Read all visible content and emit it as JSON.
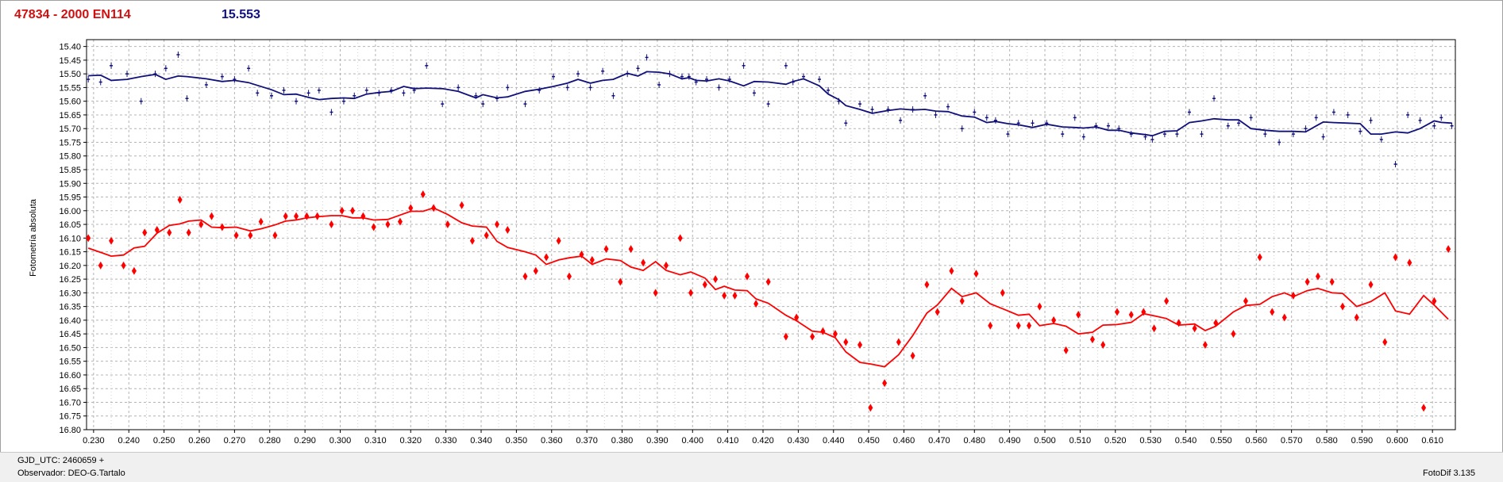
{
  "header": {
    "title": "47834 - 2000 EN114",
    "value": "15.553"
  },
  "footer": {
    "gjd": "GJD_UTC: 2460659 +",
    "observer": "Observador: DEO-G.Tartalo",
    "software": "FotoDif 3.135"
  },
  "chart_data": {
    "type": "scatter",
    "title": "",
    "xlabel": "",
    "ylabel": "Fotometría absoluta",
    "xlim": [
      0.228,
      0.6165
    ],
    "ylim": [
      16.8,
      15.375
    ],
    "y_inverted": true,
    "grid": true,
    "x_ticks": [
      "0.230",
      "0.240",
      "0.250",
      "0.260",
      "0.270",
      "0.280",
      "0.290",
      "0.300",
      "0.310",
      "0.320",
      "0.330",
      "0.340",
      "0.350",
      "0.360",
      "0.370",
      "0.380",
      "0.390",
      "0.400",
      "0.410",
      "0.420",
      "0.430",
      "0.440",
      "0.450",
      "0.460",
      "0.470",
      "0.480",
      "0.490",
      "0.500",
      "0.510",
      "0.520",
      "0.530",
      "0.540",
      "0.550",
      "0.560",
      "0.570",
      "0.580",
      "0.590",
      "0.600",
      "0.610"
    ],
    "y_ticks": [
      "15.40",
      "15.45",
      "15.50",
      "15.55",
      "15.60",
      "15.65",
      "15.70",
      "15.75",
      "15.80",
      "15.85",
      "15.90",
      "15.95",
      "16.00",
      "16.05",
      "16.10",
      "16.15",
      "16.20",
      "16.25",
      "16.30",
      "16.35",
      "16.40",
      "16.45",
      "16.50",
      "16.55",
      "16.60",
      "16.65",
      "16.70",
      "16.75",
      "16.80"
    ],
    "series": [
      {
        "color": "#10107a",
        "points": [
          [
            0.2285,
            15.52
          ],
          [
            0.232,
            15.53
          ],
          [
            0.235,
            15.47
          ],
          [
            0.2395,
            15.5
          ],
          [
            0.2435,
            15.6
          ],
          [
            0.2475,
            15.5
          ],
          [
            0.2505,
            15.48
          ],
          [
            0.254,
            15.43
          ],
          [
            0.2565,
            15.59
          ],
          [
            0.262,
            15.54
          ],
          [
            0.2665,
            15.51
          ],
          [
            0.27,
            15.52
          ],
          [
            0.274,
            15.48
          ],
          [
            0.2765,
            15.57
          ],
          [
            0.2805,
            15.58
          ],
          [
            0.284,
            15.56
          ],
          [
            0.2875,
            15.6
          ],
          [
            0.291,
            15.57
          ],
          [
            0.294,
            15.56
          ],
          [
            0.2975,
            15.64
          ],
          [
            0.301,
            15.6
          ],
          [
            0.304,
            15.58
          ],
          [
            0.3075,
            15.56
          ],
          [
            0.311,
            15.57
          ],
          [
            0.3145,
            15.56
          ],
          [
            0.318,
            15.57
          ],
          [
            0.321,
            15.56
          ],
          [
            0.3245,
            15.47
          ],
          [
            0.329,
            15.61
          ],
          [
            0.3335,
            15.55
          ],
          [
            0.3385,
            15.58
          ],
          [
            0.3405,
            15.61
          ],
          [
            0.3445,
            15.59
          ],
          [
            0.3475,
            15.55
          ],
          [
            0.3525,
            15.61
          ],
          [
            0.3565,
            15.56
          ],
          [
            0.3605,
            15.51
          ],
          [
            0.3645,
            15.55
          ],
          [
            0.3675,
            15.5
          ],
          [
            0.371,
            15.55
          ],
          [
            0.3745,
            15.49
          ],
          [
            0.3775,
            15.58
          ],
          [
            0.3815,
            15.5
          ],
          [
            0.3845,
            15.48
          ],
          [
            0.387,
            15.44
          ],
          [
            0.3905,
            15.54
          ],
          [
            0.3935,
            15.5
          ],
          [
            0.397,
            15.51
          ],
          [
            0.399,
            15.51
          ],
          [
            0.401,
            15.53
          ],
          [
            0.404,
            15.52
          ],
          [
            0.4075,
            15.55
          ],
          [
            0.4105,
            15.52
          ],
          [
            0.4145,
            15.47
          ],
          [
            0.4175,
            15.57
          ],
          [
            0.4215,
            15.61
          ],
          [
            0.4265,
            15.47
          ],
          [
            0.4285,
            15.53
          ],
          [
            0.4315,
            15.51
          ],
          [
            0.436,
            15.52
          ],
          [
            0.4385,
            15.56
          ],
          [
            0.4415,
            15.6
          ],
          [
            0.4435,
            15.68
          ],
          [
            0.4475,
            15.61
          ],
          [
            0.451,
            15.63
          ],
          [
            0.4555,
            15.63
          ],
          [
            0.459,
            15.67
          ],
          [
            0.4625,
            15.63
          ],
          [
            0.466,
            15.58
          ],
          [
            0.469,
            15.65
          ],
          [
            0.4725,
            15.62
          ],
          [
            0.4765,
            15.7
          ],
          [
            0.48,
            15.64
          ],
          [
            0.4835,
            15.66
          ],
          [
            0.486,
            15.67
          ],
          [
            0.4895,
            15.72
          ],
          [
            0.4925,
            15.68
          ],
          [
            0.4965,
            15.68
          ],
          [
            0.5005,
            15.68
          ],
          [
            0.505,
            15.72
          ],
          [
            0.5085,
            15.66
          ],
          [
            0.511,
            15.73
          ],
          [
            0.5145,
            15.69
          ],
          [
            0.518,
            15.69
          ],
          [
            0.521,
            15.7
          ],
          [
            0.5245,
            15.72
          ],
          [
            0.5285,
            15.73
          ],
          [
            0.5305,
            15.74
          ],
          [
            0.534,
            15.72
          ],
          [
            0.5375,
            15.72
          ],
          [
            0.541,
            15.64
          ],
          [
            0.5445,
            15.72
          ],
          [
            0.548,
            15.59
          ],
          [
            0.552,
            15.69
          ],
          [
            0.555,
            15.68
          ],
          [
            0.5585,
            15.66
          ],
          [
            0.5625,
            15.72
          ],
          [
            0.5665,
            15.75
          ],
          [
            0.5705,
            15.72
          ],
          [
            0.574,
            15.7
          ],
          [
            0.577,
            15.66
          ],
          [
            0.579,
            15.73
          ],
          [
            0.582,
            15.64
          ],
          [
            0.586,
            15.65
          ],
          [
            0.5895,
            15.71
          ],
          [
            0.5925,
            15.67
          ],
          [
            0.5955,
            15.74
          ],
          [
            0.5995,
            15.83
          ],
          [
            0.603,
            15.65
          ],
          [
            0.6065,
            15.67
          ],
          [
            0.6105,
            15.69
          ],
          [
            0.6125,
            15.66
          ],
          [
            0.6155,
            15.69
          ]
        ]
      },
      {
        "color": "#ff0000",
        "points": [
          [
            0.2285,
            16.1
          ],
          [
            0.232,
            16.2
          ],
          [
            0.235,
            16.11
          ],
          [
            0.2385,
            16.2
          ],
          [
            0.2415,
            16.22
          ],
          [
            0.2445,
            16.08
          ],
          [
            0.248,
            16.07
          ],
          [
            0.2515,
            16.08
          ],
          [
            0.2545,
            15.96
          ],
          [
            0.257,
            16.08
          ],
          [
            0.2605,
            16.05
          ],
          [
            0.2635,
            16.02
          ],
          [
            0.2665,
            16.06
          ],
          [
            0.2705,
            16.09
          ],
          [
            0.2745,
            16.09
          ],
          [
            0.2775,
            16.04
          ],
          [
            0.2815,
            16.09
          ],
          [
            0.2845,
            16.02
          ],
          [
            0.2875,
            16.02
          ],
          [
            0.2905,
            16.02
          ],
          [
            0.2935,
            16.02
          ],
          [
            0.2975,
            16.05
          ],
          [
            0.3005,
            16.0
          ],
          [
            0.3035,
            16.0
          ],
          [
            0.3065,
            16.02
          ],
          [
            0.3095,
            16.06
          ],
          [
            0.3135,
            16.05
          ],
          [
            0.317,
            16.04
          ],
          [
            0.32,
            15.99
          ],
          [
            0.3235,
            15.94
          ],
          [
            0.3265,
            15.99
          ],
          [
            0.3305,
            16.05
          ],
          [
            0.3345,
            15.98
          ],
          [
            0.3375,
            16.11
          ],
          [
            0.3415,
            16.09
          ],
          [
            0.3445,
            16.05
          ],
          [
            0.3475,
            16.07
          ],
          [
            0.3525,
            16.24
          ],
          [
            0.3555,
            16.22
          ],
          [
            0.3585,
            16.17
          ],
          [
            0.362,
            16.11
          ],
          [
            0.365,
            16.24
          ],
          [
            0.3685,
            16.16
          ],
          [
            0.3715,
            16.18
          ],
          [
            0.3755,
            16.14
          ],
          [
            0.3795,
            16.26
          ],
          [
            0.3825,
            16.14
          ],
          [
            0.386,
            16.19
          ],
          [
            0.3895,
            16.3
          ],
          [
            0.3925,
            16.2
          ],
          [
            0.3965,
            16.1
          ],
          [
            0.3995,
            16.3
          ],
          [
            0.4035,
            16.27
          ],
          [
            0.4065,
            16.25
          ],
          [
            0.409,
            16.31
          ],
          [
            0.412,
            16.31
          ],
          [
            0.4155,
            16.24
          ],
          [
            0.418,
            16.34
          ],
          [
            0.4215,
            16.26
          ],
          [
            0.4265,
            16.46
          ],
          [
            0.4295,
            16.39
          ],
          [
            0.434,
            16.46
          ],
          [
            0.437,
            16.44
          ],
          [
            0.4405,
            16.45
          ],
          [
            0.4435,
            16.48
          ],
          [
            0.4475,
            16.49
          ],
          [
            0.4505,
            16.72
          ],
          [
            0.4545,
            16.63
          ],
          [
            0.4585,
            16.48
          ],
          [
            0.4625,
            16.53
          ],
          [
            0.4665,
            16.27
          ],
          [
            0.4695,
            16.37
          ],
          [
            0.4735,
            16.22
          ],
          [
            0.4765,
            16.33
          ],
          [
            0.4805,
            16.23
          ],
          [
            0.4845,
            16.42
          ],
          [
            0.488,
            16.3
          ],
          [
            0.4925,
            16.42
          ],
          [
            0.4955,
            16.42
          ],
          [
            0.4985,
            16.35
          ],
          [
            0.5025,
            16.4
          ],
          [
            0.506,
            16.51
          ],
          [
            0.5095,
            16.38
          ],
          [
            0.5135,
            16.47
          ],
          [
            0.5165,
            16.49
          ],
          [
            0.5205,
            16.37
          ],
          [
            0.5245,
            16.38
          ],
          [
            0.528,
            16.37
          ],
          [
            0.531,
            16.43
          ],
          [
            0.5345,
            16.33
          ],
          [
            0.538,
            16.41
          ],
          [
            0.5425,
            16.43
          ],
          [
            0.5455,
            16.49
          ],
          [
            0.5485,
            16.41
          ],
          [
            0.5535,
            16.45
          ],
          [
            0.557,
            16.33
          ],
          [
            0.561,
            16.17
          ],
          [
            0.5645,
            16.37
          ],
          [
            0.568,
            16.39
          ],
          [
            0.5705,
            16.31
          ],
          [
            0.5745,
            16.26
          ],
          [
            0.5775,
            16.24
          ],
          [
            0.5815,
            16.26
          ],
          [
            0.5845,
            16.35
          ],
          [
            0.5885,
            16.39
          ],
          [
            0.5925,
            16.27
          ],
          [
            0.5965,
            16.48
          ],
          [
            0.5995,
            16.17
          ],
          [
            0.6035,
            16.19
          ],
          [
            0.6075,
            16.72
          ],
          [
            0.6105,
            16.33
          ],
          [
            0.6145,
            16.14
          ]
        ]
      }
    ]
  }
}
